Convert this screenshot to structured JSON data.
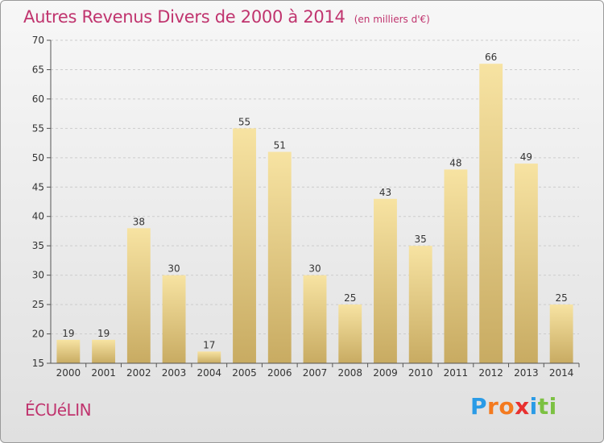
{
  "title": "Autres Revenus Divers de 2000 à 2014",
  "subtitle": "(en milliers d'€)",
  "commune": "ÉCUéLIN",
  "brand": {
    "letters": [
      "P",
      "r",
      "o",
      "x",
      "i",
      "t",
      "i"
    ],
    "colors": [
      "#2a9be6",
      "#f47a1f",
      "#f47a1f",
      "#e8302f",
      "#2a9be6",
      "#7cc142",
      "#7cc142"
    ]
  },
  "colors": {
    "title": "#c0346e",
    "bar_light": "#f7e3a2",
    "bar_dark": "#c8ab62",
    "grid": "#cccccc"
  },
  "chart_data": {
    "type": "bar",
    "categories": [
      "2000",
      "2001",
      "2002",
      "2003",
      "2004",
      "2005",
      "2006",
      "2007",
      "2008",
      "2009",
      "2010",
      "2011",
      "2012",
      "2013",
      "2014"
    ],
    "values": [
      19,
      19,
      38,
      30,
      17,
      55,
      51,
      30,
      25,
      43,
      35,
      48,
      66,
      49,
      25
    ],
    "ylim": [
      15,
      70
    ],
    "yticks": [
      15,
      20,
      25,
      30,
      35,
      40,
      45,
      50,
      55,
      60,
      65,
      70
    ],
    "grid": true,
    "title": "Autres Revenus Divers de 2000 à 2014",
    "xlabel": "",
    "ylabel": ""
  }
}
